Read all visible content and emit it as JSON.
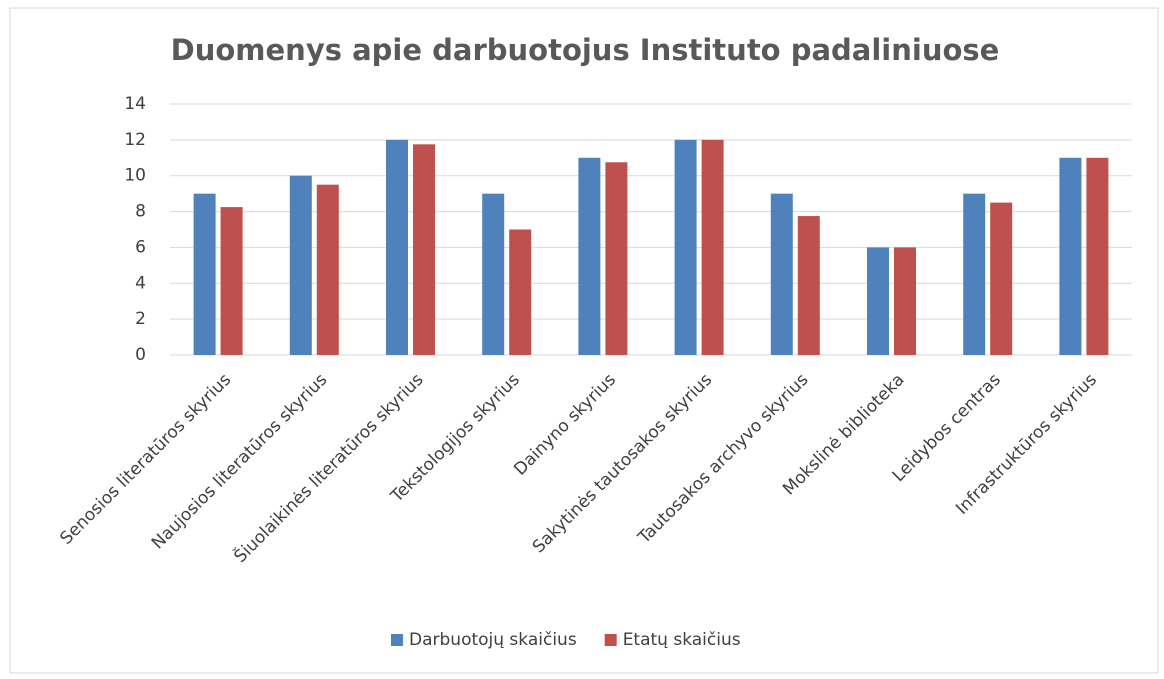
{
  "chart_data": {
    "type": "bar",
    "title": "Duomenys apie darbuotojus Instituto padaliniuose",
    "categories": [
      "Senosios literatūros skyrius",
      "Naujosios literatūros skyrius",
      "Šiuolaikinės literatūros skyrius",
      "Tekstologijos skyrius",
      "Dainyno skyrius",
      "Sakytinės tautosakos skyrius",
      "Tautosakos archyvo skyrius",
      "Mokslinė biblioteka",
      "Leidybos centras",
      "Infrastruktūros skyrius"
    ],
    "series": [
      {
        "name": "Darbuotojų skaičius",
        "color": "#4f81bd",
        "values": [
          9,
          10,
          12,
          9,
          11,
          12,
          9,
          6,
          9,
          11
        ]
      },
      {
        "name": "Etatų skaičius",
        "color": "#c0504d",
        "values": [
          8.25,
          9.5,
          11.75,
          7,
          10.75,
          12,
          7.75,
          6,
          8.5,
          11
        ]
      }
    ],
    "ylim": [
      0,
      14
    ],
    "yticks": [
      0,
      2,
      4,
      6,
      8,
      10,
      12,
      14
    ],
    "grid": true,
    "legend": "bottom"
  }
}
